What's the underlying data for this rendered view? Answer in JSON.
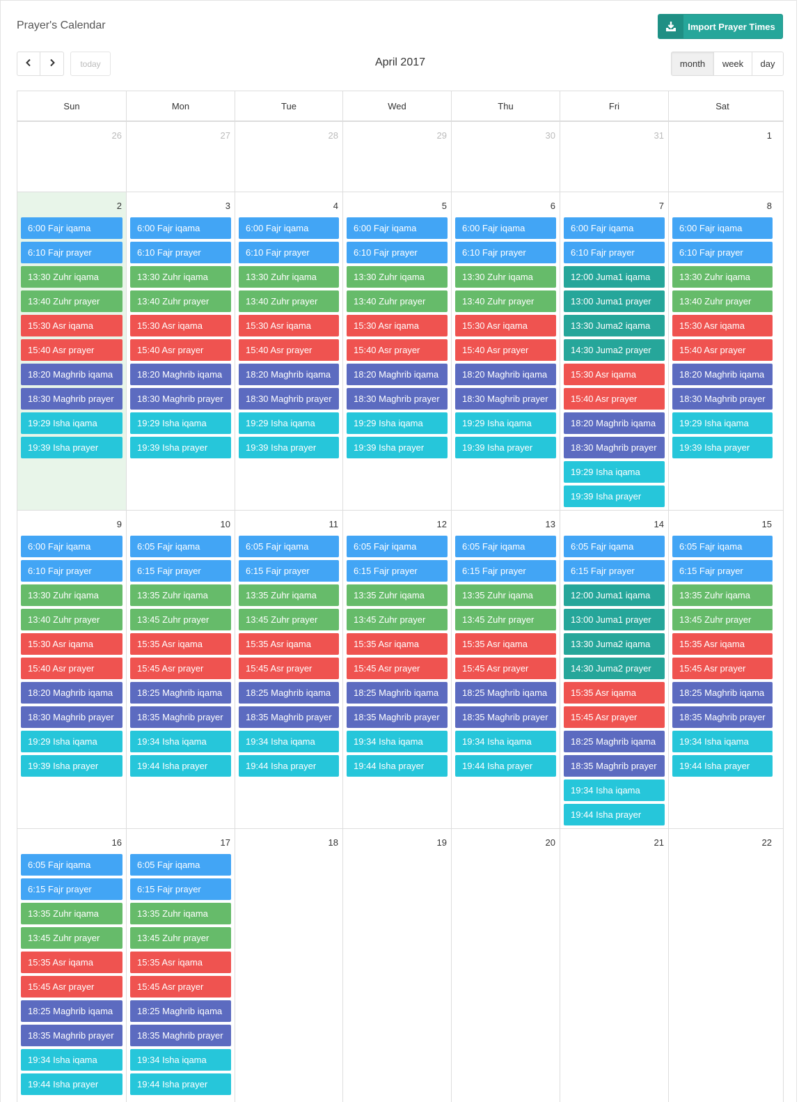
{
  "header": {
    "title": "Prayer's Calendar",
    "import_label": "Import Prayer Times",
    "import_icon": "download-tray-icon",
    "today_label": "today",
    "month_title": "April 2017",
    "views": [
      "month",
      "week",
      "day"
    ],
    "active_view": "month"
  },
  "day_names": [
    "Sun",
    "Mon",
    "Tue",
    "Wed",
    "Thu",
    "Fri",
    "Sat"
  ],
  "colors": {
    "fajr": "#42a5f5",
    "zuhr": "#66bb6a",
    "juma": "#26a69a",
    "asr": "#ef5350",
    "maghrib": "#5c6bc0",
    "isha": "#26c6da",
    "today_bg": "#e8f5e9",
    "import_button": "#26a69a"
  },
  "weeks": [
    {
      "days": [
        {
          "num": "26",
          "other": true,
          "events": []
        },
        {
          "num": "27",
          "other": true,
          "events": []
        },
        {
          "num": "28",
          "other": true,
          "events": []
        },
        {
          "num": "29",
          "other": true,
          "events": []
        },
        {
          "num": "30",
          "other": true,
          "events": []
        },
        {
          "num": "31",
          "other": true,
          "events": []
        },
        {
          "num": "1",
          "events": []
        }
      ]
    },
    {
      "days": [
        {
          "num": "2",
          "today": true,
          "events": [
            {
              "t": "6:00 Fajr iqama",
              "c": "fajr"
            },
            {
              "t": "6:10 Fajr prayer",
              "c": "fajr"
            },
            {
              "t": "13:30 Zuhr iqama",
              "c": "zuhr"
            },
            {
              "t": "13:40 Zuhr prayer",
              "c": "zuhr"
            },
            {
              "t": "15:30 Asr iqama",
              "c": "asr"
            },
            {
              "t": "15:40 Asr prayer",
              "c": "asr"
            },
            {
              "t": "18:20 Maghrib iqama",
              "c": "maghrib"
            },
            {
              "t": "18:30 Maghrib prayer",
              "c": "maghrib"
            },
            {
              "t": "19:29 Isha iqama",
              "c": "isha"
            },
            {
              "t": "19:39 Isha prayer",
              "c": "isha"
            }
          ]
        },
        {
          "num": "3",
          "events": [
            {
              "t": "6:00 Fajr iqama",
              "c": "fajr"
            },
            {
              "t": "6:10 Fajr prayer",
              "c": "fajr"
            },
            {
              "t": "13:30 Zuhr iqama",
              "c": "zuhr"
            },
            {
              "t": "13:40 Zuhr prayer",
              "c": "zuhr"
            },
            {
              "t": "15:30 Asr iqama",
              "c": "asr"
            },
            {
              "t": "15:40 Asr prayer",
              "c": "asr"
            },
            {
              "t": "18:20 Maghrib iqama",
              "c": "maghrib"
            },
            {
              "t": "18:30 Maghrib prayer",
              "c": "maghrib"
            },
            {
              "t": "19:29 Isha iqama",
              "c": "isha"
            },
            {
              "t": "19:39 Isha prayer",
              "c": "isha"
            }
          ]
        },
        {
          "num": "4",
          "events": [
            {
              "t": "6:00 Fajr iqama",
              "c": "fajr"
            },
            {
              "t": "6:10 Fajr prayer",
              "c": "fajr"
            },
            {
              "t": "13:30 Zuhr iqama",
              "c": "zuhr"
            },
            {
              "t": "13:40 Zuhr prayer",
              "c": "zuhr"
            },
            {
              "t": "15:30 Asr iqama",
              "c": "asr"
            },
            {
              "t": "15:40 Asr prayer",
              "c": "asr"
            },
            {
              "t": "18:20 Maghrib iqama",
              "c": "maghrib"
            },
            {
              "t": "18:30 Maghrib prayer",
              "c": "maghrib"
            },
            {
              "t": "19:29 Isha iqama",
              "c": "isha"
            },
            {
              "t": "19:39 Isha prayer",
              "c": "isha"
            }
          ]
        },
        {
          "num": "5",
          "events": [
            {
              "t": "6:00 Fajr iqama",
              "c": "fajr"
            },
            {
              "t": "6:10 Fajr prayer",
              "c": "fajr"
            },
            {
              "t": "13:30 Zuhr iqama",
              "c": "zuhr"
            },
            {
              "t": "13:40 Zuhr prayer",
              "c": "zuhr"
            },
            {
              "t": "15:30 Asr iqama",
              "c": "asr"
            },
            {
              "t": "15:40 Asr prayer",
              "c": "asr"
            },
            {
              "t": "18:20 Maghrib iqama",
              "c": "maghrib"
            },
            {
              "t": "18:30 Maghrib prayer",
              "c": "maghrib"
            },
            {
              "t": "19:29 Isha iqama",
              "c": "isha"
            },
            {
              "t": "19:39 Isha prayer",
              "c": "isha"
            }
          ]
        },
        {
          "num": "6",
          "events": [
            {
              "t": "6:00 Fajr iqama",
              "c": "fajr"
            },
            {
              "t": "6:10 Fajr prayer",
              "c": "fajr"
            },
            {
              "t": "13:30 Zuhr iqama",
              "c": "zuhr"
            },
            {
              "t": "13:40 Zuhr prayer",
              "c": "zuhr"
            },
            {
              "t": "15:30 Asr iqama",
              "c": "asr"
            },
            {
              "t": "15:40 Asr prayer",
              "c": "asr"
            },
            {
              "t": "18:20 Maghrib iqama",
              "c": "maghrib"
            },
            {
              "t": "18:30 Maghrib prayer",
              "c": "maghrib"
            },
            {
              "t": "19:29 Isha iqama",
              "c": "isha"
            },
            {
              "t": "19:39 Isha prayer",
              "c": "isha"
            }
          ]
        },
        {
          "num": "7",
          "events": [
            {
              "t": "6:00 Fajr iqama",
              "c": "fajr"
            },
            {
              "t": "6:10 Fajr prayer",
              "c": "fajr"
            },
            {
              "t": "12:00 Juma1 iqama",
              "c": "juma"
            },
            {
              "t": "13:00 Juma1 prayer",
              "c": "juma"
            },
            {
              "t": "13:30 Juma2 iqama",
              "c": "juma"
            },
            {
              "t": "14:30 Juma2 prayer",
              "c": "juma"
            },
            {
              "t": "15:30 Asr iqama",
              "c": "asr"
            },
            {
              "t": "15:40 Asr prayer",
              "c": "asr"
            },
            {
              "t": "18:20 Maghrib iqama",
              "c": "maghrib"
            },
            {
              "t": "18:30 Maghrib prayer",
              "c": "maghrib"
            },
            {
              "t": "19:29 Isha iqama",
              "c": "isha"
            },
            {
              "t": "19:39 Isha prayer",
              "c": "isha"
            }
          ]
        },
        {
          "num": "8",
          "events": [
            {
              "t": "6:00 Fajr iqama",
              "c": "fajr"
            },
            {
              "t": "6:10 Fajr prayer",
              "c": "fajr"
            },
            {
              "t": "13:30 Zuhr iqama",
              "c": "zuhr"
            },
            {
              "t": "13:40 Zuhr prayer",
              "c": "zuhr"
            },
            {
              "t": "15:30 Asr iqama",
              "c": "asr"
            },
            {
              "t": "15:40 Asr prayer",
              "c": "asr"
            },
            {
              "t": "18:20 Maghrib iqama",
              "c": "maghrib"
            },
            {
              "t": "18:30 Maghrib prayer",
              "c": "maghrib"
            },
            {
              "t": "19:29 Isha iqama",
              "c": "isha"
            },
            {
              "t": "19:39 Isha prayer",
              "c": "isha"
            }
          ]
        }
      ]
    },
    {
      "days": [
        {
          "num": "9",
          "events": [
            {
              "t": "6:00 Fajr iqama",
              "c": "fajr"
            },
            {
              "t": "6:10 Fajr prayer",
              "c": "fajr"
            },
            {
              "t": "13:30 Zuhr iqama",
              "c": "zuhr"
            },
            {
              "t": "13:40 Zuhr prayer",
              "c": "zuhr"
            },
            {
              "t": "15:30 Asr iqama",
              "c": "asr"
            },
            {
              "t": "15:40 Asr prayer",
              "c": "asr"
            },
            {
              "t": "18:20 Maghrib iqama",
              "c": "maghrib"
            },
            {
              "t": "18:30 Maghrib prayer",
              "c": "maghrib"
            },
            {
              "t": "19:29 Isha iqama",
              "c": "isha"
            },
            {
              "t": "19:39 Isha prayer",
              "c": "isha"
            }
          ]
        },
        {
          "num": "10",
          "events": [
            {
              "t": "6:05 Fajr iqama",
              "c": "fajr"
            },
            {
              "t": "6:15 Fajr prayer",
              "c": "fajr"
            },
            {
              "t": "13:35 Zuhr iqama",
              "c": "zuhr"
            },
            {
              "t": "13:45 Zuhr prayer",
              "c": "zuhr"
            },
            {
              "t": "15:35 Asr iqama",
              "c": "asr"
            },
            {
              "t": "15:45 Asr prayer",
              "c": "asr"
            },
            {
              "t": "18:25 Maghrib iqama",
              "c": "maghrib"
            },
            {
              "t": "18:35 Maghrib prayer",
              "c": "maghrib"
            },
            {
              "t": "19:34 Isha iqama",
              "c": "isha"
            },
            {
              "t": "19:44 Isha prayer",
              "c": "isha"
            }
          ]
        },
        {
          "num": "11",
          "events": [
            {
              "t": "6:05 Fajr iqama",
              "c": "fajr"
            },
            {
              "t": "6:15 Fajr prayer",
              "c": "fajr"
            },
            {
              "t": "13:35 Zuhr iqama",
              "c": "zuhr"
            },
            {
              "t": "13:45 Zuhr prayer",
              "c": "zuhr"
            },
            {
              "t": "15:35 Asr iqama",
              "c": "asr"
            },
            {
              "t": "15:45 Asr prayer",
              "c": "asr"
            },
            {
              "t": "18:25 Maghrib iqama",
              "c": "maghrib"
            },
            {
              "t": "18:35 Maghrib prayer",
              "c": "maghrib"
            },
            {
              "t": "19:34 Isha iqama",
              "c": "isha"
            },
            {
              "t": "19:44 Isha prayer",
              "c": "isha"
            }
          ]
        },
        {
          "num": "12",
          "events": [
            {
              "t": "6:05 Fajr iqama",
              "c": "fajr"
            },
            {
              "t": "6:15 Fajr prayer",
              "c": "fajr"
            },
            {
              "t": "13:35 Zuhr iqama",
              "c": "zuhr"
            },
            {
              "t": "13:45 Zuhr prayer",
              "c": "zuhr"
            },
            {
              "t": "15:35 Asr iqama",
              "c": "asr"
            },
            {
              "t": "15:45 Asr prayer",
              "c": "asr"
            },
            {
              "t": "18:25 Maghrib iqama",
              "c": "maghrib"
            },
            {
              "t": "18:35 Maghrib prayer",
              "c": "maghrib"
            },
            {
              "t": "19:34 Isha iqama",
              "c": "isha"
            },
            {
              "t": "19:44 Isha prayer",
              "c": "isha"
            }
          ]
        },
        {
          "num": "13",
          "events": [
            {
              "t": "6:05 Fajr iqama",
              "c": "fajr"
            },
            {
              "t": "6:15 Fajr prayer",
              "c": "fajr"
            },
            {
              "t": "13:35 Zuhr iqama",
              "c": "zuhr"
            },
            {
              "t": "13:45 Zuhr prayer",
              "c": "zuhr"
            },
            {
              "t": "15:35 Asr iqama",
              "c": "asr"
            },
            {
              "t": "15:45 Asr prayer",
              "c": "asr"
            },
            {
              "t": "18:25 Maghrib iqama",
              "c": "maghrib"
            },
            {
              "t": "18:35 Maghrib prayer",
              "c": "maghrib"
            },
            {
              "t": "19:34 Isha iqama",
              "c": "isha"
            },
            {
              "t": "19:44 Isha prayer",
              "c": "isha"
            }
          ]
        },
        {
          "num": "14",
          "events": [
            {
              "t": "6:05 Fajr iqama",
              "c": "fajr"
            },
            {
              "t": "6:15 Fajr prayer",
              "c": "fajr"
            },
            {
              "t": "12:00 Juma1 iqama",
              "c": "juma"
            },
            {
              "t": "13:00 Juma1 prayer",
              "c": "juma"
            },
            {
              "t": "13:30 Juma2 iqama",
              "c": "juma"
            },
            {
              "t": "14:30 Juma2 prayer",
              "c": "juma"
            },
            {
              "t": "15:35 Asr iqama",
              "c": "asr"
            },
            {
              "t": "15:45 Asr prayer",
              "c": "asr"
            },
            {
              "t": "18:25 Maghrib iqama",
              "c": "maghrib"
            },
            {
              "t": "18:35 Maghrib prayer",
              "c": "maghrib"
            },
            {
              "t": "19:34 Isha iqama",
              "c": "isha"
            },
            {
              "t": "19:44 Isha prayer",
              "c": "isha"
            }
          ]
        },
        {
          "num": "15",
          "events": [
            {
              "t": "6:05 Fajr iqama",
              "c": "fajr"
            },
            {
              "t": "6:15 Fajr prayer",
              "c": "fajr"
            },
            {
              "t": "13:35 Zuhr iqama",
              "c": "zuhr"
            },
            {
              "t": "13:45 Zuhr prayer",
              "c": "zuhr"
            },
            {
              "t": "15:35 Asr iqama",
              "c": "asr"
            },
            {
              "t": "15:45 Asr prayer",
              "c": "asr"
            },
            {
              "t": "18:25 Maghrib iqama",
              "c": "maghrib"
            },
            {
              "t": "18:35 Maghrib prayer",
              "c": "maghrib"
            },
            {
              "t": "19:34 Isha iqama",
              "c": "isha"
            },
            {
              "t": "19:44 Isha prayer",
              "c": "isha"
            }
          ]
        }
      ]
    },
    {
      "days": [
        {
          "num": "16",
          "events": [
            {
              "t": "6:05 Fajr iqama",
              "c": "fajr"
            },
            {
              "t": "6:15 Fajr prayer",
              "c": "fajr"
            },
            {
              "t": "13:35 Zuhr iqama",
              "c": "zuhr"
            },
            {
              "t": "13:45 Zuhr prayer",
              "c": "zuhr"
            },
            {
              "t": "15:35 Asr iqama",
              "c": "asr"
            },
            {
              "t": "15:45 Asr prayer",
              "c": "asr"
            },
            {
              "t": "18:25 Maghrib iqama",
              "c": "maghrib"
            },
            {
              "t": "18:35 Maghrib prayer",
              "c": "maghrib"
            },
            {
              "t": "19:34 Isha iqama",
              "c": "isha"
            },
            {
              "t": "19:44 Isha prayer",
              "c": "isha"
            }
          ]
        },
        {
          "num": "17",
          "events": [
            {
              "t": "6:05 Fajr iqama",
              "c": "fajr"
            },
            {
              "t": "6:15 Fajr prayer",
              "c": "fajr"
            },
            {
              "t": "13:35 Zuhr iqama",
              "c": "zuhr"
            },
            {
              "t": "13:45 Zuhr prayer",
              "c": "zuhr"
            },
            {
              "t": "15:35 Asr iqama",
              "c": "asr"
            },
            {
              "t": "15:45 Asr prayer",
              "c": "asr"
            },
            {
              "t": "18:25 Maghrib iqama",
              "c": "maghrib"
            },
            {
              "t": "18:35 Maghrib prayer",
              "c": "maghrib"
            },
            {
              "t": "19:34 Isha iqama",
              "c": "isha"
            },
            {
              "t": "19:44 Isha prayer",
              "c": "isha"
            }
          ]
        },
        {
          "num": "18",
          "events": []
        },
        {
          "num": "19",
          "events": []
        },
        {
          "num": "20",
          "events": []
        },
        {
          "num": "21",
          "events": []
        },
        {
          "num": "22",
          "events": []
        }
      ]
    }
  ]
}
